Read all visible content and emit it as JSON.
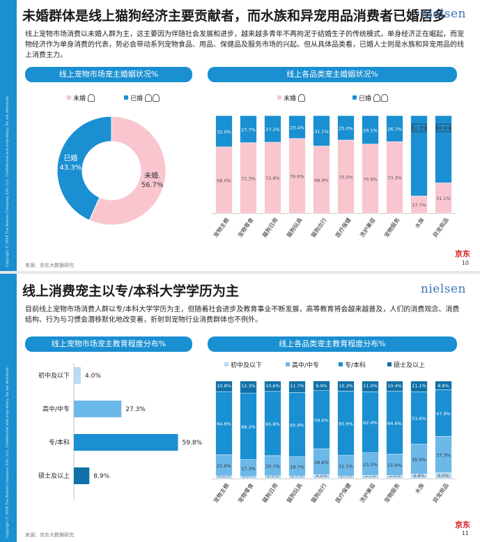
{
  "sidebar_text": "Copyright © 2018 The Nielsen Company (US), LLC. Confidential and proprietary. Do not distribute.",
  "logo": "nielsen",
  "jd_logo": "京东",
  "slide1": {
    "title": "未婚群体是线上猫狗经济主要贡献者，而水族和异宠用品消费者已婚居多",
    "paragraph": "线上宠物市场消费以未婚人群为主，这主要因为伴随社会发展和进步，越来越多青年不再拘泥于结婚生子的传统模式，单身经济正在崛起，而宠物经济作为单身消费的代表，势必会带动系列宠物食品、用品、保健品及服务市场的兴起。但从具体品类看，已婚人士则是水族和异宠用品的线上消费主力。",
    "left_banner": "线上宠物市场宠主婚姻状况%",
    "right_banner": "线上各品类宠主婚姻状况%",
    "source": "来源：京东大数据研究",
    "page": "10"
  },
  "slide2": {
    "title": "线上消费宠主以专/本科大学学历为主",
    "paragraph": "目前线上宠物市场消费人群以专/本科大学学历为主，但随着社会进步及教育事业不断发展，高等教育将会越来越普及，人们的消费观念、消费结构、行为与习惯会潜移默化地改变着，折射到宠物行业消费群体也不例外。",
    "left_banner": "线上宠物市场宠主教育程度分布%",
    "right_banner": "线上各品类宠主教育程度分布%",
    "source": "来源：京东大数据研究",
    "page": "11"
  },
  "chart_data": [
    {
      "type": "pie",
      "title": "线上宠物市场宠主婚姻状况%",
      "categories": [
        "未婚",
        "已婚"
      ],
      "values": [
        56.7,
        43.3
      ],
      "labels": [
        "56.7%",
        "43.3%"
      ],
      "colors": [
        "#f9c6cf",
        "#1a8fd1"
      ],
      "legend": [
        "未婚",
        "已婚"
      ]
    },
    {
      "type": "bar",
      "stacked": true,
      "title": "线上各品类宠主婚姻状况%",
      "categories": [
        "宠物主粮",
        "宠物零食",
        "猫狗日用",
        "猫狗玩具",
        "猫狗出行",
        "医疗保健",
        "洗护美容",
        "宠物服务",
        "水族",
        "异宠用品"
      ],
      "series": [
        {
          "name": "未婚",
          "color": "#f9c6cf",
          "values": [
            68.0,
            72.3,
            72.8,
            76.6,
            68.9,
            75.0,
            70.9,
            73.3,
            17.7,
            31.1
          ],
          "labels": [
            "68.0%",
            "72.3%",
            "72.8%",
            "76.6%",
            "68.9%",
            "75.0%",
            "70.9%",
            "73.3%",
            "17.7%",
            "31.1%"
          ]
        },
        {
          "name": "已婚",
          "color": "#1a8fd1",
          "values": [
            32.0,
            27.7,
            27.2,
            23.4,
            31.1,
            25.0,
            29.1,
            26.7,
            82.3,
            68.9
          ],
          "labels": [
            "32.0%",
            "27.7%",
            "27.2%",
            "23.4%",
            "31.1%",
            "25.0%",
            "29.1%",
            "26.7%",
            "82.3%",
            "68.9%"
          ]
        }
      ],
      "highlighted": [
        8,
        9
      ],
      "ylim": [
        0,
        100
      ],
      "legend": "top"
    },
    {
      "type": "bar",
      "orientation": "horizontal",
      "title": "线上宠物市场宠主教育程度分布%",
      "categories": [
        "初中及以下",
        "高中/中专",
        "专/本科",
        "硕士及以上"
      ],
      "values": [
        4.0,
        27.3,
        59.8,
        8.9
      ],
      "labels": [
        "4.0%",
        "27.3%",
        "59.8%",
        "8.9%"
      ],
      "colors": [
        "#b9dcf2",
        "#6cb8e8",
        "#1a8fd1",
        "#1071a8"
      ],
      "xlim": [
        0,
        60
      ]
    },
    {
      "type": "bar",
      "stacked": true,
      "title": "线上各品类宠主教育程度分布%",
      "categories": [
        "宠物主粮",
        "宠物零食",
        "猫狗日用",
        "猫狗玩具",
        "猫狗出行",
        "医疗保健",
        "洗护美容",
        "宠物服务",
        "水族",
        "异宠用品"
      ],
      "series": [
        {
          "name": "初中及以下",
          "color": "#b9dcf2",
          "values": [
            2.8,
            2.2,
            2.9,
            2.7,
            4.0,
            2.7,
            3.3,
            3.4,
            4.8,
            6.0
          ],
          "labels": [
            "2.8%",
            "2.2%",
            "2.9%",
            "2.7%",
            "4.0%",
            "2.7%",
            "3.3%",
            "3.4%",
            "4.8%",
            "6.0%"
          ]
        },
        {
          "name": "高中/中专",
          "color": "#6cb8e8",
          "values": [
            21.6,
            17.3,
            20.7,
            19.7,
            26.6,
            21.1,
            23.3,
            21.6,
            30.5,
            37.3
          ],
          "labels": [
            "21.6%",
            "17.3%",
            "20.7%",
            "19.7%",
            "26.6%",
            "21.1%",
            "23.3%",
            "21.6%",
            "30.5%",
            "37.3%"
          ]
        },
        {
          "name": "专/本科",
          "color": "#1a8fd1",
          "values": [
            64.8,
            68.2,
            65.8,
            65.9,
            59.6,
            65.9,
            62.4,
            64.6,
            53.6,
            47.9
          ],
          "labels": [
            "64.8%",
            "68.2%",
            "65.8%",
            "65.9%",
            "59.6%",
            "65.9%",
            "62.4%",
            "64.6%",
            "53.6%",
            "47.9%"
          ]
        },
        {
          "name": "硕士及以上",
          "color": "#1071a8",
          "values": [
            10.8,
            12.3,
            10.6,
            11.7,
            9.9,
            10.3,
            11.0,
            10.4,
            11.1,
            8.8
          ],
          "labels": [
            "10.8%",
            "12.3%",
            "10.6%",
            "11.7%",
            "9.9%",
            "10.3%",
            "11.0%",
            "10.4%",
            "11.1%",
            "8.8%"
          ]
        }
      ],
      "ylim": [
        0,
        100
      ],
      "legend": "top"
    }
  ]
}
